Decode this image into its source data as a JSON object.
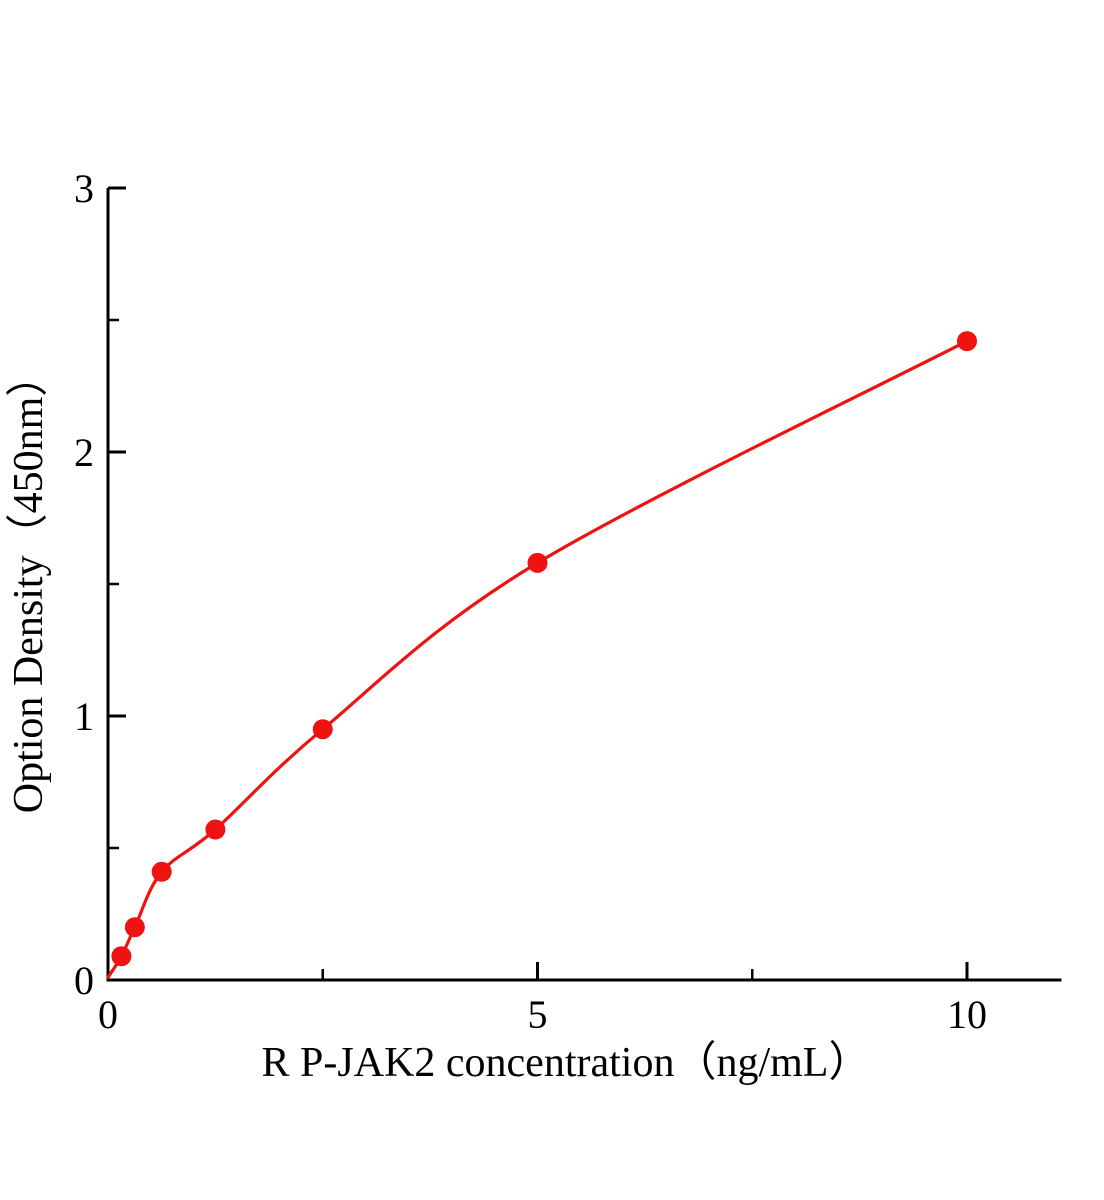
{
  "figure": {
    "background": "#ffffff",
    "axis_color": "#000000"
  },
  "chart_data": {
    "type": "scatter",
    "title": "",
    "xlabel": "R P-JAK2 concentration（ng/mL）",
    "ylabel": "Option Density（450nm）",
    "xlim": [
      0,
      11.1
    ],
    "ylim": [
      0,
      3
    ],
    "grid": false,
    "legend": "none",
    "x_ticks": {
      "major": [
        {
          "v": 0,
          "label": "0"
        },
        {
          "v": 5,
          "label": "5"
        },
        {
          "v": 10,
          "label": "10"
        }
      ],
      "minor": [
        2.5,
        7.5
      ]
    },
    "y_ticks": {
      "major": [
        {
          "v": 0,
          "label": "0"
        },
        {
          "v": 1,
          "label": "1"
        },
        {
          "v": 2,
          "label": "2"
        },
        {
          "v": 3,
          "label": "3"
        }
      ],
      "minor": [
        0.5,
        1.5,
        2.5
      ]
    },
    "series": [
      {
        "color": "#ee1311",
        "marker": "circle",
        "marker_size": 10,
        "x": [
          0.156,
          0.3125,
          0.625,
          1.25,
          2.5,
          5,
          10
        ],
        "y": [
          0.09,
          0.2,
          0.41,
          0.57,
          0.95,
          1.58,
          2.42
        ],
        "fit_curve_start": {
          "x": 0,
          "y": 0.01
        }
      }
    ]
  }
}
